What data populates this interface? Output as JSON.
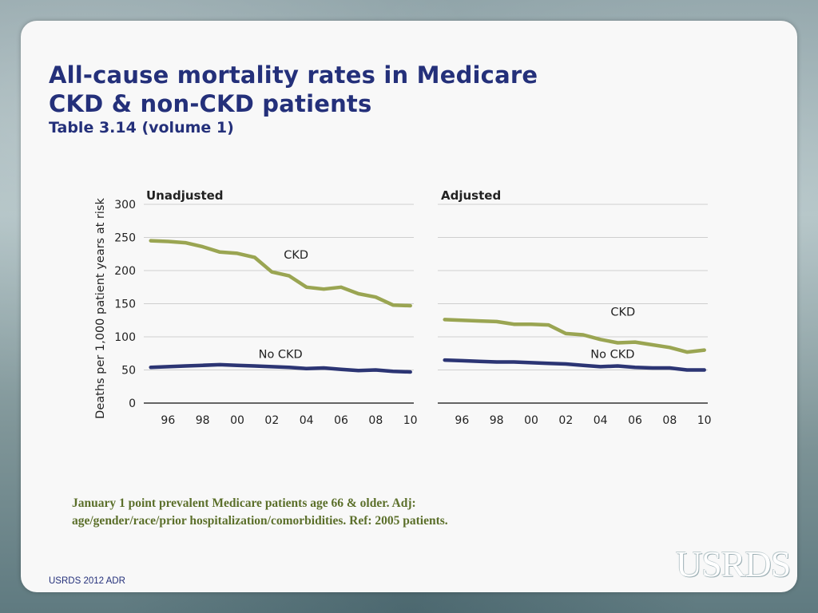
{
  "slide": {
    "title_line1": "All-cause mortality rates in Medicare",
    "title_line2": "CKD & non-CKD patients",
    "subtitle": "Table 3.14 (volume 1)",
    "caption_line1": "January 1 point prevalent Medicare patients age 66 & older. Adj:",
    "caption_line2": "age/gender/race/prior hospitalization/comorbidities. Ref: 2005 patients.",
    "footer": "USRDS 2012 ADR",
    "logo": "USRDS"
  },
  "colors": {
    "ckd": "#9aa552",
    "no_ckd": "#2c3574",
    "title": "#24307a",
    "grid": "#cfcfcf"
  },
  "chart_data": [
    {
      "type": "line",
      "title": "Unadjusted",
      "ylabel": "Deaths per 1,000 patient years at risk",
      "xlabel": "",
      "ylim": [
        0,
        300
      ],
      "yticks": [
        0,
        50,
        100,
        150,
        200,
        250,
        300
      ],
      "ytick_labels": [
        "0",
        "50",
        "100",
        "150",
        "200",
        "250",
        "300"
      ],
      "x": [
        1995,
        1996,
        1997,
        1998,
        1999,
        2000,
        2001,
        2002,
        2003,
        2004,
        2005,
        2006,
        2007,
        2008,
        2009,
        2010
      ],
      "xticks": [
        1996,
        1998,
        2000,
        2002,
        2004,
        2006,
        2008,
        2010
      ],
      "xtick_labels": [
        "96",
        "98",
        "00",
        "02",
        "04",
        "06",
        "08",
        "10"
      ],
      "grid": true,
      "series": [
        {
          "name": "CKD",
          "label_x": 2003.4,
          "label_y": 218,
          "values": [
            245,
            244,
            242,
            236,
            228,
            226,
            220,
            198,
            192,
            175,
            172,
            175,
            165,
            160,
            148,
            147
          ]
        },
        {
          "name": "No CKD",
          "label_x": 2002.5,
          "label_y": 68,
          "values": [
            54,
            55,
            56,
            57,
            58,
            57,
            56,
            55,
            54,
            52,
            53,
            51,
            49,
            50,
            48,
            47
          ]
        }
      ]
    },
    {
      "type": "line",
      "title": "Adjusted",
      "ylabel": "",
      "xlabel": "",
      "ylim": [
        0,
        300
      ],
      "yticks": [
        0,
        50,
        100,
        150,
        200,
        250,
        300
      ],
      "ytick_labels": [],
      "x": [
        1995,
        1996,
        1997,
        1998,
        1999,
        2000,
        2001,
        2002,
        2003,
        2004,
        2005,
        2006,
        2007,
        2008,
        2009,
        2010
      ],
      "xticks": [
        1996,
        1998,
        2000,
        2002,
        2004,
        2006,
        2008,
        2010
      ],
      "xtick_labels": [
        "96",
        "98",
        "00",
        "02",
        "04",
        "06",
        "08",
        "10"
      ],
      "grid": true,
      "series": [
        {
          "name": "CKD",
          "label_x": 2005.3,
          "label_y": 132,
          "values": [
            126,
            125,
            124,
            123,
            119,
            119,
            118,
            105,
            103,
            96,
            91,
            92,
            88,
            84,
            77,
            80
          ]
        },
        {
          "name": "No CKD",
          "label_x": 2004.7,
          "label_y": 68,
          "values": [
            65,
            64,
            63,
            62,
            62,
            61,
            60,
            59,
            57,
            55,
            56,
            54,
            53,
            53,
            50,
            50
          ]
        }
      ]
    }
  ]
}
